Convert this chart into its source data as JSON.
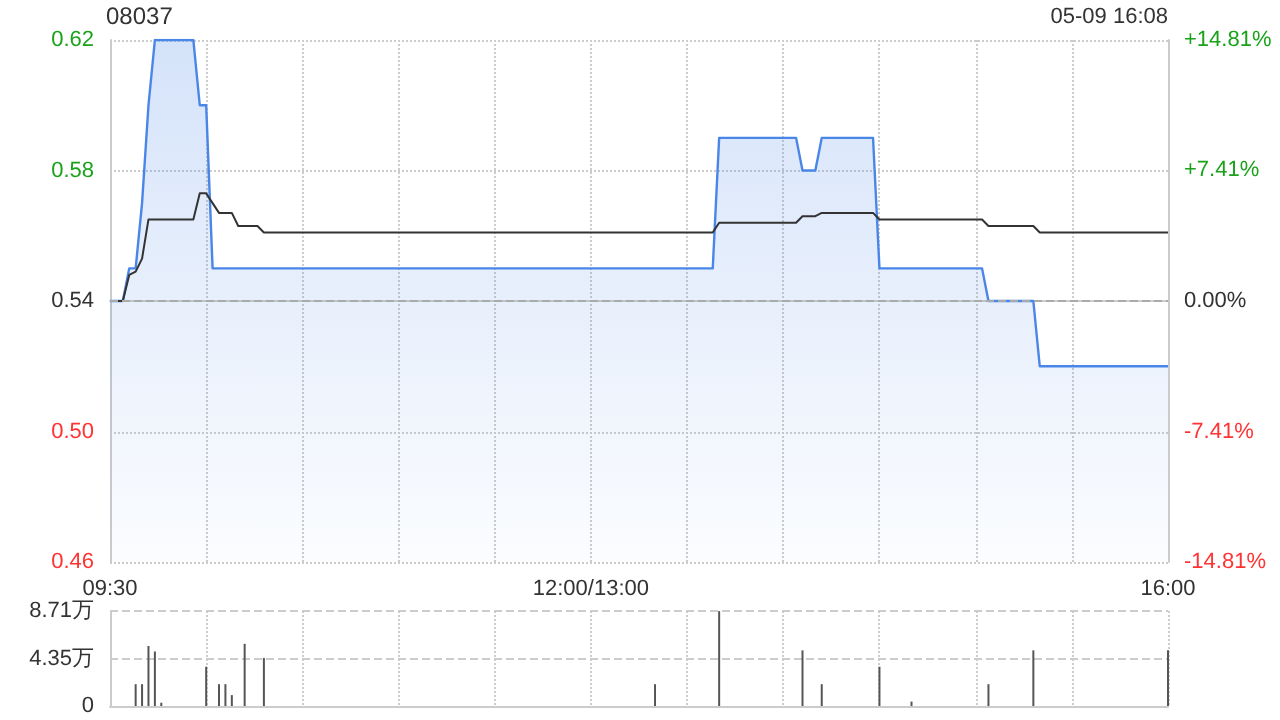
{
  "chart_data": [
    {
      "type": "area",
      "title": "08037",
      "annotations": [
        "05-09 16:08"
      ],
      "categories": [
        "09:30",
        null,
        null,
        null,
        null,
        null,
        null,
        null,
        null,
        null,
        null,
        null,
        null,
        null,
        null,
        null,
        null,
        null,
        null,
        null,
        null,
        null,
        null,
        null,
        null,
        null,
        null,
        null,
        null,
        null,
        null,
        null,
        null,
        null,
        null,
        null,
        null,
        null,
        null,
        null,
        null,
        null,
        null,
        null,
        null,
        null,
        null,
        null,
        null,
        null,
        null,
        null,
        null,
        null,
        null,
        null,
        null,
        null,
        null,
        null,
        null,
        null,
        null,
        null,
        null,
        null,
        null,
        null,
        null,
        null,
        null,
        null,
        null,
        null,
        null,
        "12:00/13:00",
        null,
        null,
        null,
        null,
        null,
        null,
        null,
        null,
        null,
        null,
        null,
        null,
        null,
        null,
        null,
        null,
        null,
        null,
        null,
        null,
        null,
        null,
        null,
        null,
        null,
        null,
        null,
        null,
        null,
        null,
        null,
        null,
        null,
        null,
        null,
        null,
        null,
        null,
        null,
        null,
        null,
        null,
        null,
        null,
        null,
        null,
        null,
        null,
        null,
        null,
        null,
        null,
        null,
        null,
        null,
        null,
        null,
        null,
        null,
        null,
        null,
        null,
        null,
        null,
        null,
        null,
        null,
        null,
        null,
        null,
        null,
        null,
        null,
        null,
        null,
        null,
        null,
        null,
        null,
        null,
        null,
        null,
        null,
        null,
        null,
        null,
        null,
        null,
        null,
        "16:00"
      ],
      "ylim": [
        0.46,
        0.62
      ],
      "yticks": [
        0.46,
        {
          "value": 0.5,
          "label": "0.50"
        },
        0.54,
        0.58,
        0.62
      ],
      "y2lim": [
        -14.81,
        14.81
      ],
      "y2ticks": [
        {
          "value": -14.81,
          "label": "-14.81%"
        },
        {
          "value": -7.41,
          "label": "-7.41%"
        },
        {
          "value": 0,
          "label": "0.00%"
        },
        {
          "value": 7.41,
          "label": "+7.41%"
        },
        {
          "value": 14.81,
          "label": "+14.81%"
        }
      ],
      "grid": true,
      "ref_lines": [
        {
          "axis": "y",
          "value": 0.54,
          "label": null,
          "color": "#aaaaaa",
          "line_style": "dashed"
        }
      ],
      "series": [
        {
          "type": "area",
          "color": "#4a86e8",
          "values": [
            0.54,
            0.54,
            0.54,
            0.55,
            0.55,
            0.57,
            0.6,
            0.62,
            0.62,
            0.62,
            0.62,
            0.62,
            0.62,
            0.62,
            0.6,
            0.6,
            0.55,
            0.55,
            0.55,
            0.55,
            0.55,
            0.55,
            0.55,
            0.55,
            0.55,
            0.55,
            0.55,
            0.55,
            0.55,
            0.55,
            0.55,
            0.55,
            0.55,
            0.55,
            0.55,
            0.55,
            0.55,
            0.55,
            0.55,
            0.55,
            0.55,
            0.55,
            0.55,
            0.55,
            0.55,
            0.55,
            0.55,
            0.55,
            0.55,
            0.55,
            0.55,
            0.55,
            0.55,
            0.55,
            0.55,
            0.55,
            0.55,
            0.55,
            0.55,
            0.55,
            0.55,
            0.55,
            0.55,
            0.55,
            0.55,
            0.55,
            0.55,
            0.55,
            0.55,
            0.55,
            0.55,
            0.55,
            0.55,
            0.55,
            0.55,
            0.55,
            0.55,
            0.55,
            0.55,
            0.55,
            0.55,
            0.55,
            0.55,
            0.55,
            0.55,
            0.55,
            0.55,
            0.55,
            0.55,
            0.55,
            0.55,
            0.55,
            0.55,
            0.55,
            0.55,
            0.59,
            0.59,
            0.59,
            0.59,
            0.59,
            0.59,
            0.59,
            0.59,
            0.59,
            0.59,
            0.59,
            0.59,
            0.59,
            0.58,
            0.58,
            0.58,
            0.59,
            0.59,
            0.59,
            0.59,
            0.59,
            0.59,
            0.59,
            0.59,
            0.59,
            0.55,
            0.55,
            0.55,
            0.55,
            0.55,
            0.55,
            0.55,
            0.55,
            0.55,
            0.55,
            0.55,
            0.55,
            0.55,
            0.55,
            0.55,
            0.55,
            0.55,
            0.54,
            0.54,
            0.54,
            0.54,
            0.54,
            0.54,
            0.54,
            0.54,
            0.52,
            0.52,
            0.52,
            0.52,
            0.52,
            0.52,
            0.52,
            0.52,
            0.52,
            0.52,
            0.52,
            0.52,
            0.52,
            0.52,
            0.52,
            0.52,
            0.52,
            0.52,
            0.52,
            0.52,
            0.52
          ]
        },
        {
          "type": "line",
          "color": "#333333",
          "values": [
            0.54,
            0.54,
            0.54,
            0.548,
            0.549,
            0.553,
            0.565,
            0.565,
            0.565,
            0.565,
            0.565,
            0.565,
            0.565,
            0.565,
            0.573,
            0.573,
            0.57,
            0.567,
            0.567,
            0.567,
            0.563,
            0.563,
            0.563,
            0.563,
            0.561,
            0.561,
            0.561,
            0.561,
            0.561,
            0.561,
            0.561,
            0.561,
            0.561,
            0.561,
            0.561,
            0.561,
            0.561,
            0.561,
            0.561,
            0.561,
            0.561,
            0.561,
            0.561,
            0.561,
            0.561,
            0.561,
            0.561,
            0.561,
            0.561,
            0.561,
            0.561,
            0.561,
            0.561,
            0.561,
            0.561,
            0.561,
            0.561,
            0.561,
            0.561,
            0.561,
            0.561,
            0.561,
            0.561,
            0.561,
            0.561,
            0.561,
            0.561,
            0.561,
            0.561,
            0.561,
            0.561,
            0.561,
            0.561,
            0.561,
            0.561,
            0.561,
            0.561,
            0.561,
            0.561,
            0.561,
            0.561,
            0.561,
            0.561,
            0.561,
            0.561,
            0.561,
            0.561,
            0.561,
            0.561,
            0.561,
            0.561,
            0.561,
            0.561,
            0.561,
            0.561,
            0.564,
            0.564,
            0.564,
            0.564,
            0.564,
            0.564,
            0.564,
            0.564,
            0.564,
            0.564,
            0.564,
            0.564,
            0.564,
            0.566,
            0.566,
            0.566,
            0.567,
            0.567,
            0.567,
            0.567,
            0.567,
            0.567,
            0.567,
            0.567,
            0.567,
            0.565,
            0.565,
            0.565,
            0.565,
            0.565,
            0.565,
            0.565,
            0.565,
            0.565,
            0.565,
            0.565,
            0.565,
            0.565,
            0.565,
            0.565,
            0.565,
            0.565,
            0.563,
            0.563,
            0.563,
            0.563,
            0.563,
            0.563,
            0.563,
            0.563,
            0.561,
            0.561,
            0.561,
            0.561,
            0.561,
            0.561,
            0.561,
            0.561,
            0.561,
            0.561,
            0.561,
            0.561,
            0.561,
            0.561,
            0.561,
            0.561,
            0.561,
            0.561,
            0.561,
            0.561,
            0.561
          ]
        }
      ]
    },
    {
      "type": "bar",
      "categories": [
        null,
        null,
        null,
        null,
        null,
        null,
        null,
        null,
        null,
        null,
        null,
        null,
        null,
        null,
        null,
        null,
        null,
        null,
        null,
        null,
        null,
        null,
        null,
        null,
        null,
        null,
        null,
        null,
        null,
        null,
        null,
        null,
        null,
        null,
        null,
        null,
        null,
        null,
        null,
        null,
        null,
        null,
        null,
        null,
        null,
        null,
        null,
        null,
        null,
        null,
        null,
        null,
        null,
        null,
        null,
        null,
        null,
        null,
        null,
        null,
        null,
        null,
        null,
        null,
        null,
        null,
        null,
        null,
        null,
        null,
        null,
        null,
        null,
        null,
        null,
        null,
        null,
        null,
        null,
        null,
        null,
        null,
        null,
        null,
        null,
        null,
        null,
        null,
        null,
        null,
        null,
        null,
        null,
        null,
        null,
        null,
        null,
        null,
        null,
        null,
        null,
        null,
        null,
        null,
        null,
        null,
        null,
        null,
        null,
        null,
        null,
        null,
        null,
        null,
        null,
        null,
        null,
        null,
        null,
        null,
        null,
        null,
        null,
        null,
        null,
        null,
        null,
        null,
        null,
        null,
        null,
        null,
        null,
        null,
        null,
        null,
        null,
        null,
        null,
        null,
        null,
        null,
        null,
        null,
        null,
        null,
        null,
        null,
        null,
        null,
        null,
        null,
        null,
        null,
        null,
        null,
        null,
        null,
        null,
        null,
        null,
        null,
        null,
        null,
        null,
        null
      ],
      "ylim": [
        0,
        8.71
      ],
      "yticks": [
        0,
        {
          "value": 4.35,
          "label": "4.35万"
        },
        {
          "value": 8.71,
          "label": "8.71万"
        }
      ],
      "tick_labels": "y",
      "grid": true,
      "values": [
        null,
        null,
        null,
        null,
        2.0,
        2.0,
        5.5,
        5.0,
        0.3,
        null,
        null,
        null,
        null,
        null,
        null,
        3.6,
        null,
        2.0,
        2.0,
        1.0,
        null,
        5.7,
        null,
        null,
        4.4,
        null,
        null,
        null,
        null,
        null,
        null,
        null,
        null,
        null,
        null,
        null,
        null,
        null,
        null,
        null,
        null,
        null,
        null,
        null,
        null,
        null,
        null,
        null,
        null,
        null,
        null,
        null,
        null,
        null,
        null,
        null,
        null,
        null,
        null,
        null,
        null,
        null,
        null,
        null,
        null,
        null,
        null,
        null,
        null,
        null,
        null,
        null,
        null,
        null,
        null,
        null,
        null,
        null,
        null,
        null,
        null,
        null,
        null,
        null,
        null,
        2.0,
        null,
        null,
        null,
        null,
        null,
        null,
        null,
        null,
        null,
        8.7,
        null,
        null,
        null,
        null,
        null,
        null,
        null,
        null,
        null,
        null,
        null,
        null,
        5.1,
        null,
        null,
        2.0,
        null,
        null,
        null,
        null,
        null,
        null,
        null,
        null,
        3.6,
        null,
        null,
        null,
        null,
        0.4,
        null,
        null,
        null,
        null,
        null,
        null,
        null,
        null,
        null,
        null,
        null,
        2.0,
        null,
        null,
        null,
        null,
        null,
        null,
        5.1,
        null,
        null,
        null,
        null,
        null,
        null,
        null,
        null,
        null,
        null,
        null,
        null,
        null,
        null,
        null,
        null,
        null,
        null,
        null,
        null,
        5.1
      ],
      "color": "#555555"
    }
  ]
}
